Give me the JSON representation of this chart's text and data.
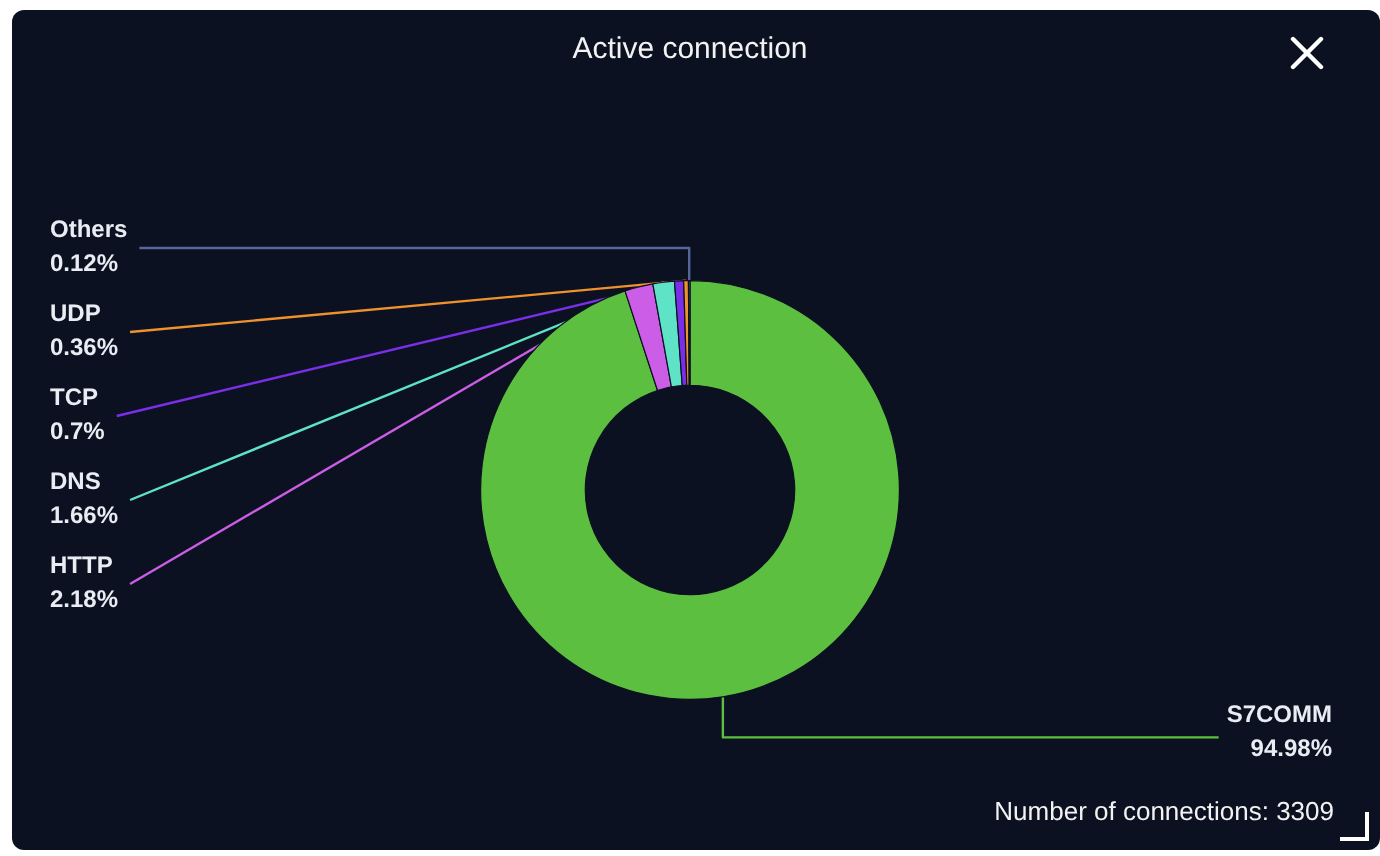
{
  "chart_data": {
    "type": "donut",
    "title": "Active connection",
    "categories": [
      "S7COMM",
      "HTTP",
      "DNS",
      "TCP",
      "UDP",
      "Others"
    ],
    "values": [
      94.98,
      2.18,
      1.66,
      0.7,
      0.36,
      0.12
    ],
    "colors": [
      "#5cbf40",
      "#cc5de6",
      "#5fe3c6",
      "#7b2ee8",
      "#ef922e",
      "#56659a"
    ],
    "value_labels": [
      "94.98%",
      "2.18%",
      "1.66%",
      "0.7%",
      "0.36%",
      "0.12%"
    ],
    "annotations": [
      "Number of connections: 3309"
    ]
  }
}
